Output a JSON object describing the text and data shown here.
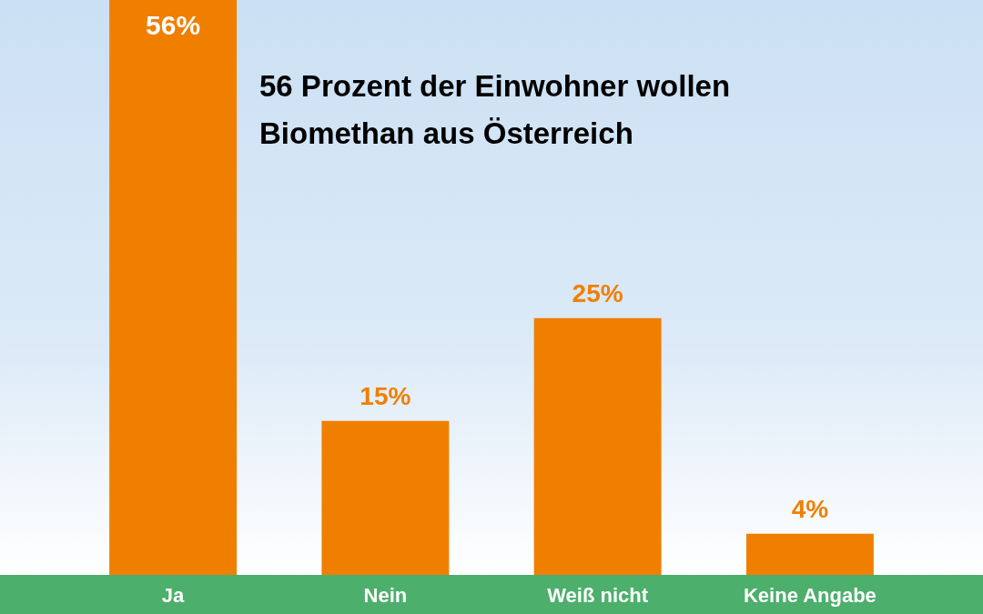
{
  "chart_data": {
    "type": "bar",
    "title": "56 Prozent der Einwohner wollen Biomethan aus Österreich",
    "categories": [
      "Ja",
      "Nein",
      "Weiß nicht",
      "Keine Angabe"
    ],
    "values": [
      56,
      15,
      25,
      4
    ],
    "value_labels": [
      "56%",
      "15%",
      "25%",
      "4%"
    ],
    "color": "#f07f00",
    "ylim": [
      0,
      56
    ],
    "grid": false
  }
}
